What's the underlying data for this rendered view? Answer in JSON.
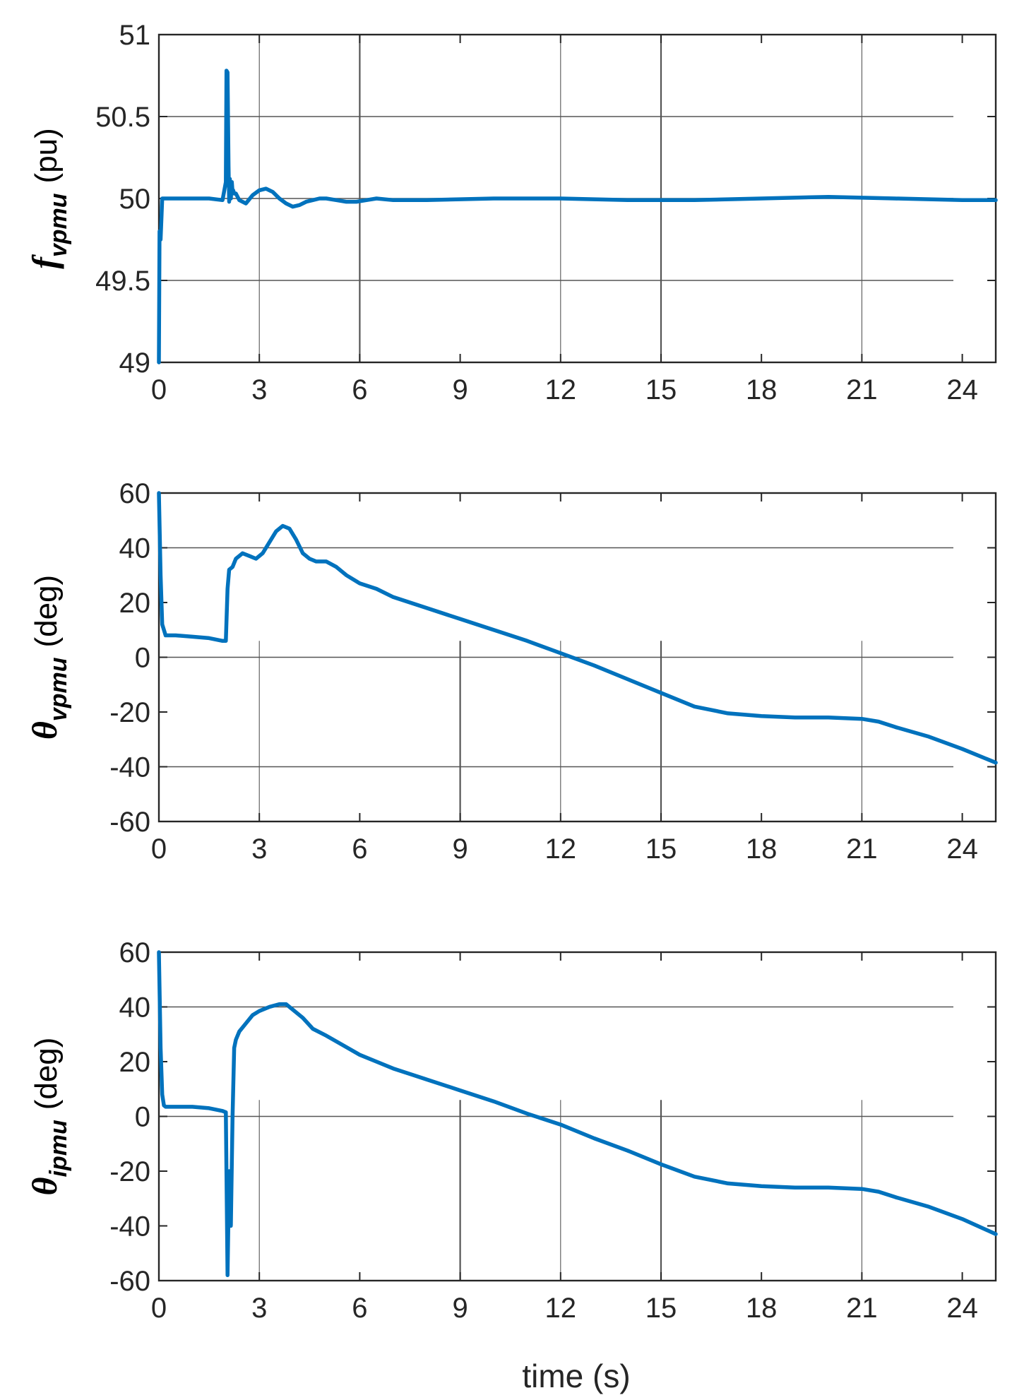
{
  "figure": {
    "xlabel": "time (s)"
  },
  "colors": {
    "line": "#0072BD",
    "axis": "#262626",
    "grid": "#555555"
  },
  "chart_data": [
    {
      "type": "line",
      "ylabel": {
        "symbol": "f",
        "subscript": "vpmu",
        "unit": "(pu)"
      },
      "xlabel": "",
      "xlim": [
        0,
        25
      ],
      "ylim": [
        49,
        51
      ],
      "xticks": [
        "0",
        "3",
        "6",
        "9",
        "12",
        "15",
        "18",
        "21",
        "24"
      ],
      "xtick_values": [
        0,
        3,
        6,
        9,
        12,
        15,
        18,
        21,
        24
      ],
      "yticks": [
        "49",
        "49.5",
        "50",
        "50.5",
        "51"
      ],
      "ytick_values": [
        49,
        49.5,
        50,
        50.5,
        51
      ],
      "series": [
        {
          "name": "f_vpmu",
          "x": [
            0,
            0.02,
            0.05,
            0.08,
            0.1,
            0.15,
            0.2,
            0.5,
            1.0,
            1.5,
            1.9,
            2.0,
            2.02,
            2.05,
            2.08,
            2.1,
            2.12,
            2.15,
            2.18,
            2.2,
            2.22,
            2.25,
            2.3,
            2.4,
            2.6,
            2.8,
            3.0,
            3.2,
            3.4,
            3.6,
            3.8,
            4.0,
            4.2,
            4.4,
            4.6,
            4.8,
            5.0,
            5.3,
            5.6,
            5.9,
            6.2,
            6.5,
            7.0,
            8.0,
            10,
            12,
            14,
            15,
            16,
            18,
            20,
            22,
            24,
            25
          ],
          "y": [
            49,
            49.8,
            49.75,
            49.9,
            50.0,
            50.0,
            50.0,
            50.0,
            50.0,
            50.0,
            49.99,
            50.1,
            50.78,
            50.77,
            50.2,
            49.98,
            50.12,
            50.0,
            50.1,
            50.04,
            50.05,
            50.03,
            50.03,
            49.99,
            49.97,
            50.02,
            50.05,
            50.06,
            50.04,
            50.0,
            49.97,
            49.95,
            49.96,
            49.98,
            49.99,
            50.0,
            50.0,
            49.99,
            49.98,
            49.98,
            49.99,
            50.0,
            49.99,
            49.99,
            50.0,
            50.0,
            49.99,
            49.99,
            49.99,
            50.0,
            50.01,
            50.0,
            49.99,
            49.99
          ]
        }
      ],
      "h_grid": [
        49.5,
        50,
        50.5
      ],
      "v_grid": [
        3,
        6,
        12,
        15,
        21
      ]
    },
    {
      "type": "line",
      "ylabel": {
        "symbol": "θ",
        "subscript": "vpmu",
        "unit": "(deg)"
      },
      "xlabel": "",
      "xlim": [
        0,
        25
      ],
      "ylim": [
        -60,
        60
      ],
      "xticks": [
        "0",
        "3",
        "6",
        "9",
        "12",
        "15",
        "18",
        "21",
        "24"
      ],
      "xtick_values": [
        0,
        3,
        6,
        9,
        12,
        15,
        18,
        21,
        24
      ],
      "yticks": [
        "-60",
        "-40",
        "-20",
        "0",
        "20",
        "40",
        "60"
      ],
      "ytick_values": [
        -60,
        -40,
        -20,
        0,
        20,
        40,
        60
      ],
      "series": [
        {
          "name": "theta_vpmu",
          "x": [
            0,
            0.05,
            0.1,
            0.2,
            0.5,
            1.0,
            1.5,
            1.9,
            2.0,
            2.05,
            2.1,
            2.2,
            2.3,
            2.5,
            2.7,
            2.9,
            3.1,
            3.3,
            3.5,
            3.7,
            3.9,
            4.1,
            4.3,
            4.5,
            4.7,
            5.0,
            5.3,
            5.6,
            6.0,
            6.5,
            7,
            8,
            9,
            10,
            11,
            12,
            13,
            14,
            15,
            16,
            17,
            18,
            19,
            20,
            21,
            21.5,
            22,
            23,
            24,
            25
          ],
          "y": [
            60,
            30,
            12,
            8,
            8,
            7.5,
            7,
            6,
            6,
            25,
            32,
            33,
            36,
            38,
            37,
            36,
            38,
            42,
            46,
            48,
            47,
            43,
            38,
            36,
            35,
            35,
            33,
            30,
            27,
            25,
            22,
            18,
            14,
            10,
            6,
            1.5,
            -3,
            -8,
            -13,
            -18,
            -20.5,
            -21.5,
            -22,
            -22,
            -22.5,
            -23.5,
            -25.5,
            -29,
            -33.5,
            -38.5
          ]
        }
      ],
      "h_grid": [
        -40,
        0,
        40
      ],
      "v_grid": [
        3,
        9,
        12,
        15,
        21
      ]
    },
    {
      "type": "line",
      "ylabel": {
        "symbol": "θ",
        "subscript": "ipmu",
        "unit": "(deg)"
      },
      "xlabel": "time (s)",
      "xlim": [
        0,
        25
      ],
      "ylim": [
        -60,
        60
      ],
      "xticks": [
        "0",
        "3",
        "6",
        "9",
        "12",
        "15",
        "18",
        "21",
        "24"
      ],
      "xtick_values": [
        0,
        3,
        6,
        9,
        12,
        15,
        18,
        21,
        24
      ],
      "yticks": [
        "-60",
        "-40",
        "-20",
        "0",
        "20",
        "40",
        "60"
      ],
      "ytick_values": [
        -60,
        -40,
        -20,
        0,
        20,
        40,
        60
      ],
      "series": [
        {
          "name": "theta_ipmu",
          "x": [
            0,
            0.05,
            0.1,
            0.15,
            0.2,
            0.5,
            1.0,
            1.5,
            1.9,
            2.0,
            2.05,
            2.1,
            2.15,
            2.2,
            2.25,
            2.3,
            2.4,
            2.6,
            2.8,
            3.0,
            3.3,
            3.6,
            3.8,
            4.0,
            4.3,
            4.6,
            5.0,
            5.5,
            6.0,
            6.5,
            7,
            8,
            9,
            10,
            11,
            12,
            13,
            14,
            15,
            16,
            17,
            18,
            19,
            20,
            21,
            21.5,
            22,
            23,
            24,
            25
          ],
          "y": [
            60,
            25,
            8,
            4,
            3.5,
            3.5,
            3.5,
            3,
            2,
            1.5,
            -58,
            -20,
            -40,
            0,
            25,
            28,
            31,
            34,
            37,
            38.5,
            40,
            41,
            41,
            39,
            36,
            32,
            29.5,
            26,
            22.5,
            20,
            17.5,
            13.5,
            9.5,
            5.5,
            1,
            -3,
            -8,
            -12.5,
            -17.5,
            -22,
            -24.5,
            -25.5,
            -26,
            -26,
            -26.5,
            -27.5,
            -29.5,
            -33,
            -37.5,
            -43
          ]
        }
      ],
      "h_grid": [
        0,
        40
      ],
      "v_grid": [
        3,
        9,
        12,
        15,
        21
      ]
    }
  ]
}
